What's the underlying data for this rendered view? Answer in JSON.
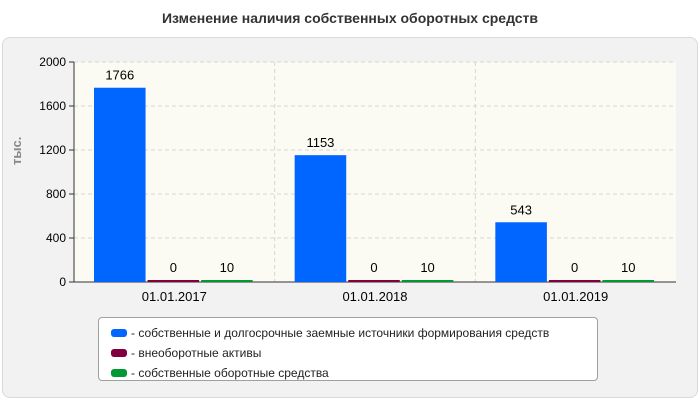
{
  "chart_data": {
    "type": "bar",
    "title": "Изменение наличия собственных оборотных средств",
    "ylabel": "тыс.",
    "xlabel": "",
    "categories": [
      "01.01.2017",
      "01.01.2018",
      "01.01.2019"
    ],
    "ylim": [
      0,
      2000
    ],
    "yticks": [
      0,
      400,
      800,
      1200,
      1600,
      2000
    ],
    "grid": true,
    "legend_position": "bottom",
    "series": [
      {
        "name": "собственные и долгосрочные заемные источники формирования средств",
        "values": [
          1766,
          1153,
          543
        ],
        "color": "#0066ff"
      },
      {
        "name": "внеоборотные активы",
        "values": [
          0,
          0,
          0
        ],
        "color": "#800040"
      },
      {
        "name": "собственные оборотные средства",
        "values": [
          10,
          10,
          10
        ],
        "color": "#009933"
      }
    ]
  }
}
